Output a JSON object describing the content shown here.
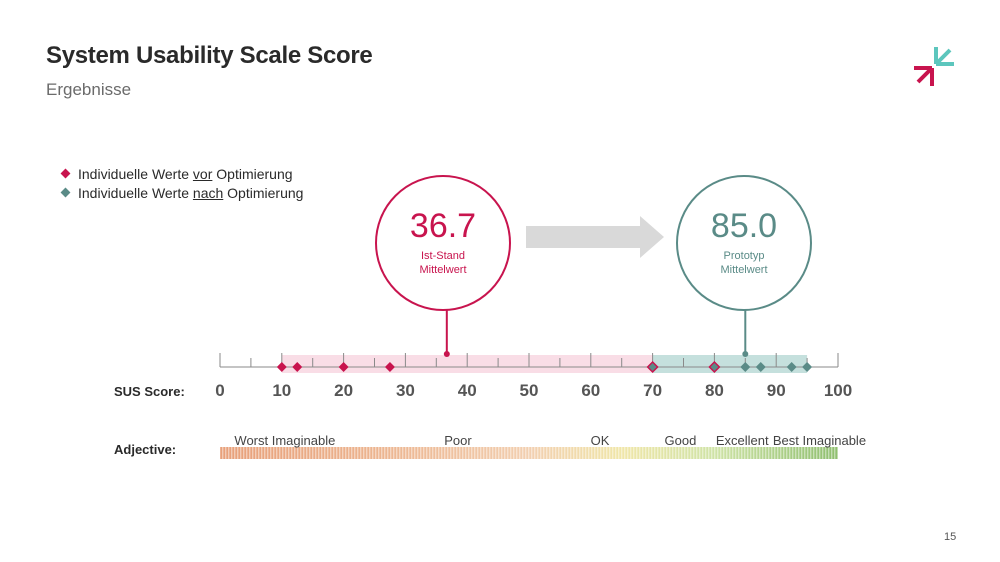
{
  "slide": {
    "title": "System Usability Scale Score",
    "subtitle": "Ergebnisse",
    "page_number": "15"
  },
  "legend": [
    {
      "label_prefix": "Individuelle Werte ",
      "label_underlined": "vor",
      "label_suffix": " Optimierung",
      "color": "#c8144e"
    },
    {
      "label_prefix": "Individuelle Werte ",
      "label_underlined": "nach",
      "label_suffix": " Optimierung",
      "color": "#5a8b87"
    }
  ],
  "colors": {
    "before": "#c8144e",
    "after": "#5a8b87",
    "before_band": "#f9dde6",
    "after_band": "#c5e0dd",
    "arrow": "#d9d9d9",
    "axis": "#8a8a8a"
  },
  "chart_data": {
    "type": "scatter",
    "axis_label": "SUS Score:",
    "adjective_label": "Adjective:",
    "xlim": [
      0,
      100
    ],
    "ticks": [
      0,
      10,
      20,
      30,
      40,
      50,
      60,
      70,
      80,
      90,
      100
    ],
    "series": [
      {
        "name": "Individuelle Werte vor Optimierung",
        "values": [
          10,
          12.5,
          20,
          27.5,
          70,
          80
        ]
      },
      {
        "name": "Individuelle Werte nach Optimierung",
        "values": [
          70,
          80,
          85,
          87.5,
          92.5,
          95
        ]
      }
    ],
    "bands": [
      {
        "range": [
          10,
          70
        ]
      },
      {
        "range": [
          70,
          95
        ]
      }
    ],
    "mean_before": {
      "value": "36.7",
      "line1": "Ist-Stand",
      "line2": "Mittelwert",
      "x": 36.7
    },
    "mean_after": {
      "value": "85.0",
      "line1": "Prototyp",
      "line2": "Mittelwert",
      "x": 85
    },
    "adjectives": [
      {
        "label": "Worst Imaginable",
        "x": 10.5
      },
      {
        "label": "Poor",
        "x": 38.5
      },
      {
        "label": "OK",
        "x": 61.5
      },
      {
        "label": "Good",
        "x": 74.5
      },
      {
        "label": "Excellent",
        "x": 84.5
      },
      {
        "label": "Best Imaginable",
        "x": 97
      }
    ]
  }
}
